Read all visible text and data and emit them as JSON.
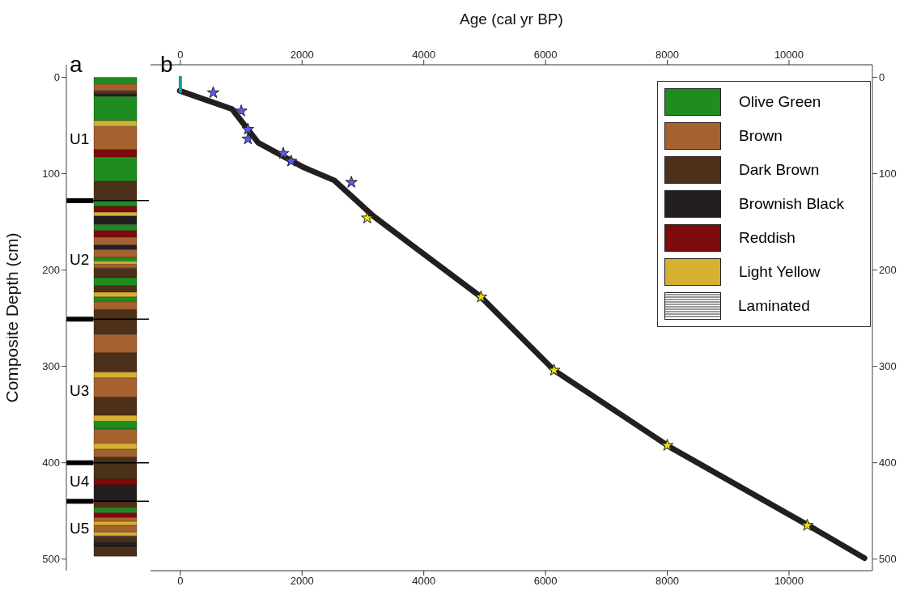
{
  "chart_data": [
    {
      "type": "bar",
      "title": "a",
      "ylabel": "Composite Depth (cm)",
      "categories": [
        null
      ],
      "stacked": true,
      "ylim": [
        512,
        -13
      ],
      "yticks": [
        0,
        100,
        200,
        300,
        400,
        500
      ],
      "legend": "top right",
      "series": [
        {
          "name": "Olive Green",
          "color": "#1e8c1e",
          "values": [
            7
          ]
        },
        {
          "name": "Brown",
          "color": "#a5612f",
          "values": [
            7
          ]
        },
        {
          "color": "#4d3019",
          "values": [
            3
          ]
        },
        {
          "color": "#231f20",
          "values": [
            3
          ]
        },
        {
          "color": "#1e8c1e",
          "values": [
            25
          ]
        },
        {
          "color": "#d6b032",
          "values": [
            6
          ]
        },
        {
          "color": "#a5612f",
          "values": [
            24
          ]
        },
        {
          "color": "#7d0b0b",
          "values": [
            8
          ]
        },
        {
          "color": "#1e8c1e",
          "values": [
            25
          ]
        },
        {
          "name": "Dark Brown",
          "color": "#4d3019",
          "values": [
            20
          ]
        },
        {
          "color": "#1e8c1e",
          "values": [
            6
          ]
        },
        {
          "color": "#7d0b0b",
          "values": [
            6
          ]
        },
        {
          "color": "#d6b032",
          "values": [
            4
          ]
        },
        {
          "name": "Brownish Black",
          "color": "#231f20",
          "values": [
            9
          ]
        },
        {
          "color": "#1e8c1e",
          "values": [
            6
          ]
        },
        {
          "name": "Reddish",
          "color": "#7d0b0b",
          "values": [
            7
          ]
        },
        {
          "color": "#a5612f",
          "values": [
            8
          ]
        },
        {
          "color": "#231f20",
          "values": [
            5
          ]
        },
        {
          "color": "#a5612f",
          "values": [
            8
          ]
        },
        {
          "color": "#1e8c1e",
          "values": [
            4
          ]
        },
        {
          "color": "#d6b032",
          "values": [
            3
          ]
        },
        {
          "color": "#a5612f",
          "values": [
            4
          ]
        },
        {
          "color": "#4d3019",
          "values": [
            10
          ]
        },
        {
          "color": "#1e8c1e",
          "values": [
            8
          ]
        },
        {
          "color": "#4d3019",
          "values": [
            7
          ]
        },
        {
          "color": "#d6b032",
          "values": [
            5
          ]
        },
        {
          "color": "#1e8c1e",
          "values": [
            5
          ]
        },
        {
          "color": "#a5612f",
          "values": [
            8
          ]
        },
        {
          "color": "#4d3019",
          "values": [
            26
          ]
        },
        {
          "color": "#a5612f",
          "values": [
            19
          ]
        },
        {
          "color": "#4d3019",
          "values": [
            20
          ]
        },
        {
          "name": "Light Yellow",
          "color": "#d6b032",
          "values": [
            6
          ]
        },
        {
          "color": "#a5612f",
          "values": [
            20
          ]
        },
        {
          "color": "#4d3019",
          "values": [
            19
          ]
        },
        {
          "color": "#d6b032",
          "values": [
            6
          ]
        },
        {
          "color": "#1e8c1e",
          "values": [
            8
          ]
        },
        {
          "color": "#a5612f",
          "values": [
            15
          ]
        },
        {
          "color": "#d6b032",
          "values": [
            6
          ]
        },
        {
          "color": "#a5612f",
          "values": [
            8
          ]
        },
        {
          "color": "#4d3019",
          "values": [
            23
          ]
        },
        {
          "color": "#7d0b0b",
          "values": [
            6
          ]
        },
        {
          "color": "#231f20",
          "values": [
            17
          ]
        },
        {
          "color": "#4d3019",
          "values": [
            7
          ]
        },
        {
          "color": "#1e8c1e",
          "values": [
            5
          ]
        },
        {
          "color": "#7d0b0b",
          "values": [
            5
          ]
        },
        {
          "color": "#a5612f",
          "values": [
            4
          ]
        },
        {
          "color": "#d6b032",
          "values": [
            4
          ]
        },
        {
          "color": "#a5612f",
          "values": [
            7
          ]
        },
        {
          "color": "#d6b032",
          "values": [
            4
          ]
        },
        {
          "color": "#4d3019",
          "values": [
            6
          ]
        },
        {
          "color": "#231f20",
          "values": [
            6
          ]
        },
        {
          "color": "#4d3019",
          "values": [
            9
          ]
        }
      ],
      "ref_lines": [
        {
          "axis": "y",
          "value": 128,
          "color": "#000000"
        },
        {
          "axis": "y",
          "value": 251,
          "color": "#000000"
        },
        {
          "axis": "y",
          "value": 400,
          "color": "#000000"
        },
        {
          "axis": "y",
          "value": 440,
          "color": "#000000"
        }
      ],
      "annotations": [
        "U1",
        "U2",
        "U3",
        "U4",
        "U5",
        "Laminated"
      ]
    },
    {
      "type": "line",
      "title": "b",
      "x2label": "Age (cal yr BP)",
      "xlim": [
        -490,
        11370
      ],
      "xticks": [
        0,
        2000,
        4000,
        6000,
        8000,
        10000
      ],
      "x2lim": [
        -490,
        11370
      ],
      "x2ticks": [
        0,
        2000,
        4000,
        6000,
        8000,
        10000
      ],
      "ylim": [
        512,
        -13
      ],
      "yticks": [
        0,
        100,
        200,
        300,
        400,
        500
      ],
      "line_style": "solid",
      "series": [
        {
          "type": "line",
          "color": "#231f20",
          "x": [
            -10,
            850,
            1280,
            2010,
            2530,
            3170,
            4940,
            6140,
            8050,
            10400,
            11240
          ],
          "values": [
            14,
            33,
            68,
            93,
            107,
            144,
            228,
            304,
            384,
            468,
            499
          ]
        },
        {
          "type": "line",
          "color": "#1a9a9a",
          "x": [
            0,
            0
          ],
          "values": [
            0,
            15
          ]
        },
        {
          "type": "scatter",
          "marker": "star",
          "color": "#5a5af0",
          "x": [
            540,
            1000,
            1110,
            1110,
            1690,
            1820,
            2810
          ],
          "values": [
            16,
            35,
            54,
            64,
            79,
            87,
            109
          ]
        },
        {
          "type": "scatter",
          "marker": "star",
          "color": "#f0e000",
          "x": [
            3070,
            4940,
            6140,
            8000,
            10300
          ],
          "values": [
            146,
            228,
            304,
            382,
            465
          ]
        }
      ]
    }
  ]
}
